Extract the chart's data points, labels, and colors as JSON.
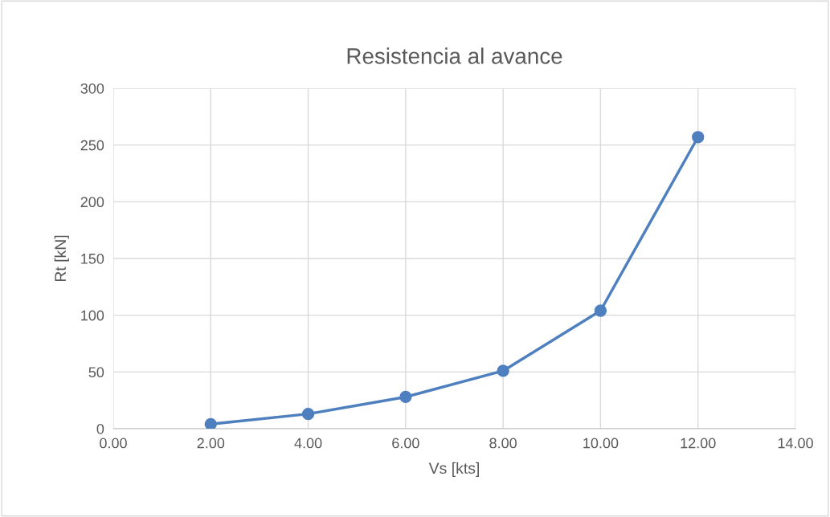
{
  "chart_data": {
    "type": "line",
    "title": "Resistencia al avance",
    "xlabel": "Vs [kts]",
    "ylabel": "Rt [kN]",
    "x": [
      2,
      4,
      6,
      8,
      10,
      12
    ],
    "series": [
      {
        "color": "#4e7fbf",
        "values": [
          4,
          13,
          28,
          51,
          104,
          257
        ]
      }
    ],
    "xlim": [
      0,
      14
    ],
    "xticks": [
      {
        "value": 0,
        "label": "0.00"
      },
      {
        "value": 2,
        "label": "2.00"
      },
      {
        "value": 4,
        "label": "4.00"
      },
      {
        "value": 6,
        "label": "6.00"
      },
      {
        "value": 8,
        "label": "8.00"
      },
      {
        "value": 10,
        "label": "10.00"
      },
      {
        "value": 12,
        "label": "12.00"
      },
      {
        "value": 14,
        "label": "14.00"
      }
    ],
    "ylim": [
      0,
      300
    ],
    "yticks": [
      0,
      50,
      100,
      150,
      200,
      250,
      300
    ],
    "grid": true,
    "marker": "circle",
    "line_style": "solid"
  }
}
